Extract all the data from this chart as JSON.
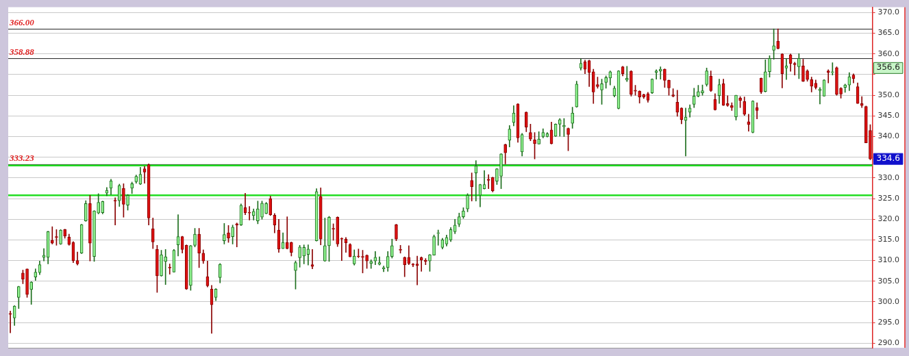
{
  "chart_data": {
    "type": "candlestick",
    "categories": [
      null,
      null,
      null,
      null,
      null,
      null,
      null,
      null,
      null,
      null,
      null,
      null,
      null,
      null,
      null,
      null,
      null,
      null,
      null,
      null,
      null,
      null,
      null,
      null,
      null,
      null,
      null,
      null,
      null,
      null,
      null,
      null,
      null,
      null,
      null,
      null,
      null,
      null,
      null,
      null,
      null,
      null,
      null,
      null,
      null,
      null,
      null,
      null,
      null,
      null,
      null,
      null,
      null,
      null,
      null,
      null,
      null,
      null,
      null,
      null,
      null,
      null,
      null,
      null,
      null,
      null,
      null,
      null,
      null,
      null,
      null,
      null,
      null,
      null,
      null,
      null,
      null,
      null,
      null,
      null,
      null,
      null,
      null,
      null,
      null,
      null,
      null,
      null,
      null,
      null,
      null,
      null,
      null,
      null,
      null,
      null,
      null,
      null,
      null,
      null,
      null,
      null,
      null,
      null,
      null,
      null,
      null,
      null,
      null,
      null,
      null,
      null,
      null,
      null,
      null,
      null,
      null,
      null,
      null,
      null,
      null,
      null,
      null,
      null,
      null,
      null,
      null,
      null,
      null,
      null,
      null,
      null,
      null,
      null,
      null,
      null,
      null,
      null,
      null,
      null,
      null,
      null,
      null,
      null,
      null,
      null,
      null,
      null,
      null,
      null,
      null,
      null,
      null,
      null,
      null,
      null,
      null,
      null,
      null,
      null,
      null,
      null,
      null,
      null,
      null,
      null,
      null,
      null,
      null,
      null,
      null,
      null,
      null,
      null,
      null,
      null,
      null,
      null,
      null,
      null,
      null,
      null,
      null,
      null,
      null,
      null,
      null,
      null,
      null,
      null,
      null,
      null,
      null,
      null,
      null,
      null,
      null,
      null,
      null,
      null,
      null,
      null,
      null,
      null,
      null,
      null
    ],
    "ohlc": [
      [
        297.2,
        297.8,
        292.5,
        297.0
      ],
      [
        296.1,
        299.1,
        294.3,
        299.0
      ],
      [
        301.1,
        303.8,
        298.4,
        303.7
      ],
      [
        307.0,
        307.7,
        304.4,
        305.5
      ],
      [
        308.0,
        308.0,
        301.1,
        301.8
      ],
      [
        303.0,
        304.9,
        299.4,
        304.8
      ],
      [
        306.0,
        308.0,
        305.2,
        307.2
      ],
      [
        307.1,
        309.9,
        306.6,
        309.0
      ],
      [
        310.8,
        312.9,
        309.9,
        311.3
      ],
      [
        310.8,
        317.1,
        309.2,
        317.0
      ],
      [
        314.9,
        318.2,
        314.0,
        314.2
      ],
      [
        315.8,
        317.5,
        313.7,
        315.6
      ],
      [
        314.0,
        317.5,
        313.9,
        317.4
      ],
      [
        317.5,
        317.6,
        315.4,
        315.9
      ],
      [
        315.7,
        316.4,
        313.7,
        313.9
      ],
      [
        314.4,
        314.6,
        309.5,
        310.0
      ],
      [
        310.0,
        312.1,
        308.9,
        309.2
      ],
      [
        311.8,
        318.8,
        311.7,
        318.7
      ],
      [
        319.6,
        324.5,
        319.5,
        323.8
      ],
      [
        323.8,
        325.8,
        309.9,
        314.2
      ],
      [
        311.0,
        322.1,
        309.8,
        322.0
      ],
      [
        321.5,
        326.2,
        321.3,
        324.1
      ],
      [
        321.6,
        324.4,
        321.3,
        324.3
      ],
      [
        326.3,
        327.7,
        325.7,
        327.0
      ],
      [
        327.5,
        329.7,
        326.0,
        329.3
      ],
      [
        324.6,
        325.2,
        318.6,
        324.4
      ],
      [
        324.5,
        328.5,
        323.1,
        328.2
      ],
      [
        327.5,
        328.6,
        320.5,
        323.6
      ],
      [
        323.4,
        326.0,
        322.2,
        325.8
      ],
      [
        327.5,
        329.0,
        326.2,
        328.6
      ],
      [
        329.1,
        330.7,
        328.7,
        330.4
      ],
      [
        328.5,
        332.6,
        328.4,
        330.9
      ],
      [
        332.2,
        332.8,
        328.7,
        331.4
      ],
      [
        333.2,
        333.4,
        318.6,
        320.3
      ],
      [
        317.7,
        320.3,
        312.9,
        314.5
      ],
      [
        312.7,
        313.7,
        302.3,
        306.3
      ],
      [
        306.3,
        312.5,
        306.2,
        311.4
      ],
      [
        309.8,
        312.7,
        304.2,
        310.9
      ],
      [
        308.4,
        309.2,
        306.7,
        308.2
      ],
      [
        307.2,
        312.7,
        307.2,
        312.5
      ],
      [
        313.8,
        321.1,
        311.1,
        315.8
      ],
      [
        315.8,
        315.9,
        311.8,
        312.7
      ],
      [
        313.7,
        313.8,
        303.0,
        303.1
      ],
      [
        304.0,
        313.7,
        302.8,
        313.6
      ],
      [
        313.7,
        317.8,
        313.3,
        316.4
      ],
      [
        316.4,
        317.8,
        308.3,
        311.8
      ],
      [
        311.8,
        312.6,
        309.3,
        309.9
      ],
      [
        306.1,
        309.9,
        303.6,
        303.9
      ],
      [
        303.1,
        304.0,
        292.4,
        299.3
      ],
      [
        301.1,
        303.2,
        300.3,
        303.1
      ],
      [
        305.9,
        309.3,
        304.6,
        309.1
      ],
      [
        314.8,
        319.0,
        314.0,
        316.3
      ],
      [
        316.7,
        318.5,
        314.4,
        315.4
      ],
      [
        315.8,
        318.6,
        314.0,
        318.1
      ],
      [
        318.9,
        319.1,
        313.3,
        318.6
      ],
      [
        318.6,
        323.7,
        318.5,
        323.4
      ],
      [
        322.8,
        326.3,
        321.1,
        321.6
      ],
      [
        321.7,
        323.1,
        319.8,
        321.5
      ],
      [
        320.9,
        322.5,
        319.8,
        321.9
      ],
      [
        319.6,
        324.4,
        318.9,
        322.5
      ],
      [
        320.5,
        324.4,
        320.0,
        323.9
      ],
      [
        321.4,
        324.1,
        321.3,
        323.8
      ],
      [
        325.0,
        325.6,
        320.9,
        321.1
      ],
      [
        321.0,
        321.4,
        316.7,
        318.6
      ],
      [
        317.4,
        320.0,
        312.0,
        312.8
      ],
      [
        312.9,
        316.7,
        312.9,
        314.4
      ],
      [
        314.4,
        320.6,
        312.8,
        312.9
      ],
      [
        314.4,
        314.5,
        311.1,
        312.0
      ],
      [
        307.6,
        309.9,
        303.1,
        309.5
      ],
      [
        310.7,
        313.7,
        308.4,
        313.3
      ],
      [
        311.1,
        313.8,
        309.2,
        313.2
      ],
      [
        311.5,
        313.8,
        308.9,
        312.8
      ],
      [
        309.0,
        312.7,
        308.0,
        308.6
      ],
      [
        314.8,
        327.4,
        314.7,
        326.7
      ],
      [
        325.5,
        327.6,
        313.8,
        315.2
      ],
      [
        309.9,
        320.3,
        309.8,
        313.6
      ],
      [
        313.6,
        320.7,
        309.8,
        320.5
      ],
      [
        317.8,
        318.9,
        314.9,
        317.6
      ],
      [
        320.5,
        320.6,
        313.4,
        314.0
      ],
      [
        315.4,
        315.5,
        310.0,
        315.2
      ],
      [
        315.2,
        315.6,
        312.0,
        314.3
      ],
      [
        313.9,
        314.1,
        310.9,
        310.9
      ],
      [
        309.2,
        312.6,
        308.9,
        311.1
      ],
      [
        311.1,
        312.8,
        310.7,
        311.0
      ],
      [
        311.0,
        312.5,
        307.0,
        310.8
      ],
      [
        311.3,
        311.4,
        308.1,
        309.9
      ],
      [
        309.3,
        310.2,
        308.1,
        309.8
      ],
      [
        309.9,
        312.2,
        309.0,
        310.8
      ],
      [
        309.1,
        310.9,
        308.9,
        309.5
      ],
      [
        308.0,
        308.7,
        307.3,
        308.3
      ],
      [
        308.3,
        312.2,
        307.4,
        311.0
      ],
      [
        311.0,
        315.2,
        310.6,
        313.6
      ],
      [
        318.7,
        318.8,
        314.8,
        315.2
      ],
      [
        312.7,
        313.7,
        311.8,
        312.5
      ],
      [
        310.8,
        310.9,
        306.1,
        309.0
      ],
      [
        310.8,
        313.6,
        309.0,
        309.3
      ],
      [
        309.2,
        309.3,
        308.5,
        308.9
      ],
      [
        309.2,
        311.1,
        304.1,
        308.8
      ],
      [
        310.7,
        310.9,
        307.4,
        310.1
      ],
      [
        310.1,
        310.5,
        309.0,
        309.8
      ],
      [
        309.9,
        311.5,
        307.4,
        311.4
      ],
      [
        311.3,
        316.2,
        311.3,
        315.8
      ],
      [
        316.6,
        317.4,
        313.7,
        316.7
      ],
      [
        313.2,
        315.4,
        312.8,
        315.0
      ],
      [
        314.0,
        316.2,
        313.5,
        315.6
      ],
      [
        315.0,
        318.0,
        314.6,
        317.5
      ],
      [
        317.0,
        320.0,
        316.5,
        318.6
      ],
      [
        318.8,
        321.5,
        318.2,
        320.6
      ],
      [
        320.6,
        322.8,
        320.2,
        322.0
      ],
      [
        322.5,
        326.2,
        321.8,
        325.8
      ],
      [
        329.4,
        331.2,
        324.4,
        327.9
      ],
      [
        331.2,
        334.2,
        324.4,
        332.9
      ],
      [
        325.8,
        328.5,
        323.0,
        328.4
      ],
      [
        327.4,
        331.8,
        327.3,
        328.4
      ],
      [
        329.7,
        330.8,
        327.4,
        329.4
      ],
      [
        330.1,
        330.2,
        326.6,
        326.9
      ],
      [
        329.2,
        332.3,
        328.4,
        332.2
      ],
      [
        330.4,
        335.9,
        327.4,
        335.8
      ],
      [
        338.1,
        338.2,
        333.4,
        336.1
      ],
      [
        339.1,
        342.7,
        337.5,
        341.8
      ],
      [
        343.4,
        347.5,
        342.6,
        345.7
      ],
      [
        347.9,
        348.0,
        338.6,
        339.7
      ],
      [
        336.3,
        340.8,
        335.3,
        340.5
      ],
      [
        345.9,
        346.0,
        341.2,
        342.3
      ],
      [
        341.0,
        343.0,
        339.0,
        339.4
      ],
      [
        339.2,
        341.0,
        334.6,
        338.3
      ],
      [
        338.2,
        341.2,
        338.2,
        339.4
      ],
      [
        340.0,
        341.9,
        339.7,
        341.0
      ],
      [
        340.0,
        341.0,
        339.9,
        340.7
      ],
      [
        341.6,
        343.5,
        338.2,
        338.3
      ],
      [
        340.1,
        343.1,
        340.0,
        343.0
      ],
      [
        343.0,
        344.4,
        340.1,
        344.1
      ],
      [
        342.4,
        344.4,
        340.0,
        342.7
      ],
      [
        342.0,
        342.1,
        336.6,
        340.5
      ],
      [
        343.2,
        347.1,
        342.0,
        345.7
      ],
      [
        347.2,
        353.4,
        347.1,
        352.7
      ],
      [
        356.6,
        358.8,
        356.1,
        357.7
      ],
      [
        358.1,
        358.5,
        355.2,
        356.3
      ],
      [
        358.4,
        358.5,
        352.1,
        355.5
      ],
      [
        355.7,
        356.3,
        348.0,
        350.8
      ],
      [
        352.6,
        354.4,
        351.7,
        352.1
      ],
      [
        351.3,
        353.9,
        347.8,
        352.8
      ],
      [
        353.1,
        354.7,
        351.7,
        354.3
      ],
      [
        354.2,
        355.9,
        352.5,
        355.7
      ],
      [
        349.9,
        352.2,
        349.6,
        351.7
      ],
      [
        346.8,
        356.0,
        346.7,
        355.9
      ],
      [
        356.9,
        357.0,
        354.7,
        355.2
      ],
      [
        353.7,
        357.0,
        353.3,
        354.1
      ],
      [
        355.8,
        356.0,
        349.8,
        350.2
      ],
      [
        351.2,
        352.4,
        350.0,
        351.0
      ],
      [
        351.0,
        351.1,
        348.1,
        349.6
      ],
      [
        350.2,
        350.3,
        349.2,
        349.6
      ],
      [
        350.4,
        350.7,
        348.3,
        348.8
      ],
      [
        350.6,
        354.0,
        350.4,
        353.9
      ],
      [
        355.5,
        356.2,
        353.9,
        355.9
      ],
      [
        355.9,
        356.9,
        353.9,
        356.3
      ],
      [
        356.3,
        356.4,
        351.9,
        353.6
      ],
      [
        353.6,
        353.7,
        350.0,
        351.8
      ],
      [
        350.1,
        351.6,
        349.6,
        349.8
      ],
      [
        348.3,
        351.2,
        344.9,
        345.9
      ],
      [
        346.9,
        347.0,
        343.1,
        344.1
      ],
      [
        343.9,
        346.9,
        335.3,
        344.7
      ],
      [
        345.9,
        347.7,
        344.7,
        346.9
      ],
      [
        347.8,
        351.7,
        347.0,
        349.8
      ],
      [
        349.8,
        352.4,
        349.6,
        350.9
      ],
      [
        350.6,
        352.5,
        350.0,
        351.1
      ],
      [
        352.6,
        356.6,
        352.2,
        355.9
      ],
      [
        354.6,
        355.9,
        350.9,
        351.1
      ],
      [
        349.0,
        350.4,
        346.4,
        346.5
      ],
      [
        349.9,
        353.9,
        348.0,
        352.6
      ],
      [
        352.8,
        353.9,
        347.5,
        347.6
      ],
      [
        348.0,
        349.9,
        347.3,
        347.5
      ],
      [
        347.5,
        348.2,
        346.3,
        347.0
      ],
      [
        344.8,
        350.0,
        344.0,
        350.0
      ],
      [
        349.3,
        349.7,
        347.0,
        348.7
      ],
      [
        348.5,
        349.6,
        345.1,
        345.4
      ],
      [
        343.6,
        345.4,
        341.3,
        342.9
      ],
      [
        341.0,
        348.7,
        340.9,
        348.6
      ],
      [
        347.0,
        348.2,
        344.3,
        346.3
      ],
      [
        354.1,
        354.2,
        350.4,
        350.8
      ],
      [
        350.9,
        358.6,
        350.8,
        355.7
      ],
      [
        355.7,
        359.6,
        354.4,
        358.9
      ],
      [
        360.9,
        366.1,
        358.7,
        362.0
      ],
      [
        363.1,
        366.1,
        361.2,
        361.3
      ],
      [
        360.0,
        360.1,
        351.8,
        355.2
      ],
      [
        356.6,
        358.9,
        353.8,
        357.1
      ],
      [
        359.8,
        360.0,
        355.8,
        357.7
      ],
      [
        357.7,
        358.0,
        354.9,
        357.4
      ],
      [
        356.9,
        360.1,
        354.0,
        358.9
      ],
      [
        357.1,
        358.7,
        353.3,
        353.4
      ],
      [
        355.9,
        356.2,
        353.4,
        353.8
      ],
      [
        353.8,
        354.4,
        350.8,
        352.2
      ],
      [
        352.9,
        353.7,
        351.5,
        351.9
      ],
      [
        351.1,
        351.9,
        347.9,
        351.5
      ],
      [
        349.8,
        353.8,
        349.8,
        353.7
      ],
      [
        355.9,
        356.2,
        353.0,
        355.5
      ],
      [
        355.5,
        357.9,
        354.9,
        355.7
      ],
      [
        356.7,
        356.9,
        350.0,
        350.2
      ],
      [
        351.7,
        351.9,
        349.3,
        350.3
      ],
      [
        351.9,
        352.7,
        350.7,
        352.5
      ],
      [
        352.5,
        355.5,
        351.1,
        354.5
      ],
      [
        354.9,
        355.2,
        353.0,
        354.0
      ],
      [
        352.1,
        353.0,
        348.0,
        348.0
      ],
      [
        348.0,
        349.7,
        347.0,
        347.5
      ],
      [
        347.3,
        347.4,
        338.5,
        338.5
      ],
      [
        341.5,
        342.9,
        334.4,
        334.6
      ]
    ],
    "ylim": [
      288.9,
      371.3
    ],
    "yticks": [
      {
        "value": 290,
        "label": "290.0"
      },
      {
        "value": 295,
        "label": "295.0"
      },
      {
        "value": 300,
        "label": "300.0"
      },
      {
        "value": 305,
        "label": "305.0"
      },
      {
        "value": 310,
        "label": "310.0"
      },
      {
        "value": 315,
        "label": "315.0"
      },
      {
        "value": 320,
        "label": "320.0"
      },
      {
        "value": 325,
        "label": "325.0"
      },
      {
        "value": 330,
        "label": "330.0"
      },
      {
        "value": 335,
        "label": null
      },
      {
        "value": 340,
        "label": "340.0"
      },
      {
        "value": 345,
        "label": "345.0"
      },
      {
        "value": 350,
        "label": "350.0"
      },
      {
        "value": 355,
        "label": null
      },
      {
        "value": 360,
        "label": "360.0"
      },
      {
        "value": 365,
        "label": "365.0"
      },
      {
        "value": 370,
        "label": "370.0"
      }
    ],
    "tick_labels": "y",
    "grid": "y",
    "legend": false,
    "ref_lines": [
      {
        "axis": "y",
        "value": 366.0,
        "label": "366.00",
        "color": "#222222"
      },
      {
        "axis": "y",
        "value": 358.88,
        "label": "358.88",
        "color": "#222222"
      },
      {
        "axis": "y",
        "value": 333.23,
        "label": "333.23",
        "color": "#222222"
      },
      {
        "axis": "y",
        "value": 333.0,
        "color": "#22dd22"
      },
      {
        "axis": "y",
        "value": 325.8,
        "color": "#22dd22"
      }
    ],
    "annotations": [
      {
        "text": "356.6",
        "y": 356.6
      },
      {
        "text": "334.6",
        "y": 334.6
      }
    ]
  }
}
